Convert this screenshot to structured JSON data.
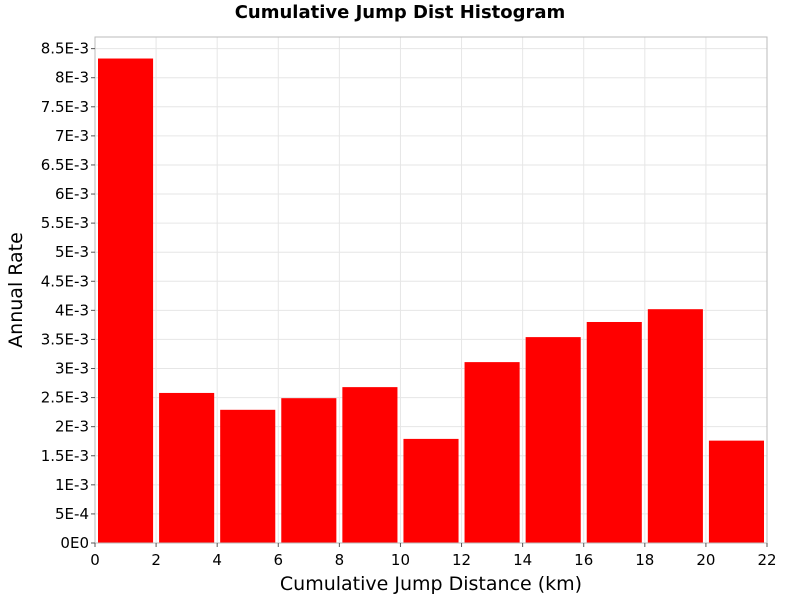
{
  "chart_data": {
    "type": "bar",
    "title": "Cumulative Jump Dist Histogram",
    "xlabel": "Cumulative Jump Distance (km)",
    "ylabel": "Annual Rate",
    "xlim": [
      0,
      22
    ],
    "ylim": [
      0,
      0.0087
    ],
    "grid": true,
    "bar_color": "#ff0000",
    "x_ticks": [
      0,
      2,
      4,
      6,
      8,
      10,
      12,
      14,
      16,
      18,
      20,
      22
    ],
    "x_tick_labels": [
      "0",
      "2",
      "4",
      "6",
      "8",
      "10",
      "12",
      "14",
      "16",
      "18",
      "20",
      "22"
    ],
    "y_ticks": [
      0,
      0.0005,
      0.001,
      0.0015,
      0.002,
      0.0025,
      0.003,
      0.0035,
      0.004,
      0.0045,
      0.005,
      0.0055,
      0.006,
      0.0065,
      0.007,
      0.0075,
      0.008,
      0.0085
    ],
    "y_tick_labels": [
      "0E0",
      "5E-4",
      "1E-3",
      "1.5E-3",
      "2E-3",
      "2.5E-3",
      "3E-3",
      "3.5E-3",
      "4E-3",
      "4.5E-3",
      "5E-3",
      "5.5E-3",
      "6E-3",
      "6.5E-3",
      "7E-3",
      "7.5E-3",
      "8E-3",
      "8.5E-3"
    ],
    "bins": [
      {
        "x0": 0,
        "x1": 2,
        "value": 0.00833
      },
      {
        "x0": 2,
        "x1": 4,
        "value": 0.00258
      },
      {
        "x0": 4,
        "x1": 6,
        "value": 0.00229
      },
      {
        "x0": 6,
        "x1": 8,
        "value": 0.00249
      },
      {
        "x0": 8,
        "x1": 10,
        "value": 0.00268
      },
      {
        "x0": 10,
        "x1": 12,
        "value": 0.00179
      },
      {
        "x0": 12,
        "x1": 14,
        "value": 0.00311
      },
      {
        "x0": 14,
        "x1": 16,
        "value": 0.00354
      },
      {
        "x0": 16,
        "x1": 18,
        "value": 0.0038
      },
      {
        "x0": 18,
        "x1": 20,
        "value": 0.00402
      },
      {
        "x0": 20,
        "x1": 22,
        "value": 0.00176
      }
    ]
  }
}
